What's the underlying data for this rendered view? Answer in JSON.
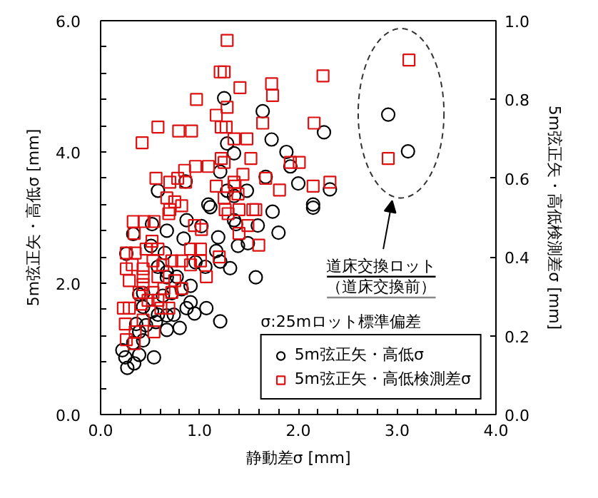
{
  "chart_data": {
    "type": "scatter",
    "xlabel": "静動差σ [mm]",
    "ylabel": "5m弦正矢・高低σ [mm]",
    "y2label": "5m弦正矢・高低検測差σ [mm]",
    "xlim": [
      0,
      4
    ],
    "ylim": [
      0,
      6
    ],
    "y2lim": [
      0,
      1
    ],
    "xticks": [
      {
        "value": 0,
        "label": "0.0"
      },
      {
        "value": 0.2,
        "label": null
      },
      {
        "value": 0.4,
        "label": null
      },
      {
        "value": 0.6,
        "label": null
      },
      {
        "value": 0.8,
        "label": null
      },
      {
        "value": 1,
        "label": "1.0"
      },
      {
        "value": 1.2,
        "label": null
      },
      {
        "value": 1.4,
        "label": null
      },
      {
        "value": 1.6,
        "label": null
      },
      {
        "value": 1.8,
        "label": null
      },
      {
        "value": 2,
        "label": "2.0"
      },
      {
        "value": 2.2,
        "label": null
      },
      {
        "value": 2.4,
        "label": null
      },
      {
        "value": 2.6,
        "label": null
      },
      {
        "value": 2.8,
        "label": null
      },
      {
        "value": 3,
        "label": "3.0"
      },
      {
        "value": 3.2,
        "label": null
      },
      {
        "value": 3.4,
        "label": null
      },
      {
        "value": 3.6,
        "label": null
      },
      {
        "value": 3.8,
        "label": null
      },
      {
        "value": 4,
        "label": "4.0"
      }
    ],
    "yticks": [
      {
        "value": 0,
        "label": "0.0"
      },
      {
        "value": 0.4,
        "label": null
      },
      {
        "value": 0.8,
        "label": null
      },
      {
        "value": 1.2,
        "label": null
      },
      {
        "value": 1.6,
        "label": null
      },
      {
        "value": 2,
        "label": "2.0"
      },
      {
        "value": 2.4,
        "label": null
      },
      {
        "value": 2.8,
        "label": null
      },
      {
        "value": 3.2,
        "label": null
      },
      {
        "value": 3.6,
        "label": null
      },
      {
        "value": 4,
        "label": "4.0"
      },
      {
        "value": 4.4,
        "label": null
      },
      {
        "value": 4.8,
        "label": null
      },
      {
        "value": 5.2,
        "label": null
      },
      {
        "value": 5.6,
        "label": null
      },
      {
        "value": 6,
        "label": "6.0"
      }
    ],
    "y2ticks": [
      {
        "value": 0,
        "label": "0.0"
      },
      0.2,
      0.4,
      0.6,
      0.8,
      {
        "value": 1,
        "label": "1.0"
      }
    ],
    "grid": false,
    "legend": "bottom right",
    "series": [
      {
        "name": "5m弦正矢・高低σ",
        "color": "#000000",
        "marker": "circle",
        "x": [
          1.25,
          1.64,
          1.73,
          1.28,
          1.35,
          1.21,
          1.67,
          0.58,
          0.86,
          1.28,
          1.35,
          1.48,
          1.09,
          1.11,
          1.74,
          0.87,
          1.02,
          1.35,
          1.37,
          1.59,
          1.8,
          0.33,
          0.52,
          0.67,
          1.19,
          1.39,
          1.49,
          0.51,
          0.65,
          0.84,
          0.26,
          1.17,
          2.91,
          3.11,
          2.26,
          1.88,
          1.92,
          2.0,
          2.32,
          2.15,
          2.15,
          1.57,
          1.31,
          1.21,
          1.07,
          1.21,
          0.91,
          0.95,
          0.87,
          0.8,
          0.67,
          0.56,
          0.54,
          0.25,
          0.27,
          0.22,
          0.39,
          0.34,
          0.43,
          0.33,
          0.39,
          0.36,
          0.46,
          0.58,
          0.67,
          0.74,
          0.43,
          0.52,
          0.39,
          0.43,
          0.63,
          0.72,
          0.82,
          0.91,
          0.67,
          0.77,
          0.96,
          1.06,
          0.58,
          0.67
        ],
        "values": [
          4.82,
          4.62,
          4.19,
          4.13,
          3.98,
          3.7,
          3.62,
          3.41,
          3.55,
          3.41,
          3.33,
          3.41,
          3.2,
          3.16,
          3.09,
          2.96,
          2.87,
          2.96,
          2.9,
          2.88,
          2.77,
          2.75,
          2.9,
          2.8,
          2.7,
          2.57,
          2.61,
          2.57,
          2.46,
          2.68,
          2.45,
          2.49,
          4.57,
          4.01,
          4.3,
          4.0,
          3.78,
          3.52,
          3.43,
          3.2,
          3.15,
          2.09,
          2.23,
          2.33,
          1.62,
          1.42,
          1.71,
          1.54,
          1.62,
          1.32,
          1.29,
          1.41,
          0.87,
          0.87,
          0.71,
          0.98,
          0.91,
          0.78,
          1.13,
          1.09,
          1.26,
          1.38,
          1.36,
          1.52,
          1.51,
          1.52,
          1.64,
          1.57,
          1.83,
          1.85,
          1.81,
          1.85,
          1.91,
          1.96,
          2.09,
          2.1,
          2.32,
          2.25,
          2.25,
          2.17
        ]
      },
      {
        "name": "5m弦正矢・高低検測差σ",
        "color": "#dd1111",
        "marker": "square",
        "axis": "y2",
        "x": [
          1.28,
          1.21,
          1.25,
          1.41,
          0.97,
          1.17,
          1.28,
          0.58,
          0.79,
          0.92,
          1.22,
          1.27,
          0.42,
          1.35,
          1.48,
          1.73,
          1.74,
          1.64,
          1.92,
          2.01,
          1.22,
          1.25,
          1.52,
          1.09,
          0.96,
          0.85,
          0.56,
          0.7,
          0.78,
          0.86,
          1.17,
          1.35,
          1.36,
          1.44,
          1.67,
          1.81,
          0.67,
          0.75,
          0.82,
          1.25,
          1.39,
          0.33,
          0.44,
          0.54,
          0.34,
          0.7,
          0.69,
          0.95,
          1.02,
          1.26,
          1.29,
          1.4,
          1.54,
          1.57,
          1.4,
          1.49,
          1.6,
          0.46,
          0.58,
          0.52,
          2.25,
          3.12,
          2.16,
          2.91,
          2.15,
          2.32,
          0.29,
          0.23,
          0.25,
          0.26,
          0.34,
          0.35,
          0.43,
          0.41,
          0.54,
          0.61,
          0.69,
          0.26,
          0.29,
          0.39,
          0.43,
          0.48,
          0.58,
          0.53,
          0.64,
          0.72,
          0.82,
          0.75,
          0.26,
          0.35,
          0.32,
          0.43,
          0.53,
          0.63,
          0.72,
          0.82,
          0.91,
          1.01,
          0.91,
          1.01,
          1.07,
          0.43,
          0.58,
          1.2
        ],
        "values": [
          0.95,
          0.87,
          0.87,
          0.83,
          0.8,
          0.76,
          0.78,
          0.73,
          0.72,
          0.72,
          0.73,
          0.73,
          0.69,
          0.7,
          0.7,
          0.84,
          0.81,
          0.74,
          0.64,
          0.64,
          0.65,
          0.64,
          0.65,
          0.63,
          0.63,
          0.62,
          0.6,
          0.59,
          0.6,
          0.59,
          0.58,
          0.59,
          0.58,
          0.61,
          0.6,
          0.57,
          0.55,
          0.54,
          0.53,
          0.55,
          0.56,
          0.49,
          0.49,
          0.49,
          0.46,
          0.52,
          0.51,
          0.48,
          0.47,
          0.52,
          0.51,
          0.52,
          0.52,
          0.52,
          0.46,
          0.48,
          0.43,
          0.42,
          0.42,
          0.44,
          0.86,
          0.9,
          0.74,
          0.65,
          0.58,
          0.59,
          0.27,
          0.27,
          0.23,
          0.19,
          0.18,
          0.21,
          0.24,
          0.28,
          0.21,
          0.27,
          0.27,
          0.37,
          0.34,
          0.31,
          0.33,
          0.29,
          0.29,
          0.31,
          0.32,
          0.31,
          0.32,
          0.34,
          0.41,
          0.41,
          0.38,
          0.37,
          0.39,
          0.38,
          0.39,
          0.39,
          0.38,
          0.39,
          0.42,
          0.42,
          0.35,
          0.35,
          0.35,
          0.4
        ]
      }
    ],
    "annotations": [
      "σ:25mロット標準偏差",
      "道床交換ロット",
      "（道床交換前）"
    ]
  }
}
